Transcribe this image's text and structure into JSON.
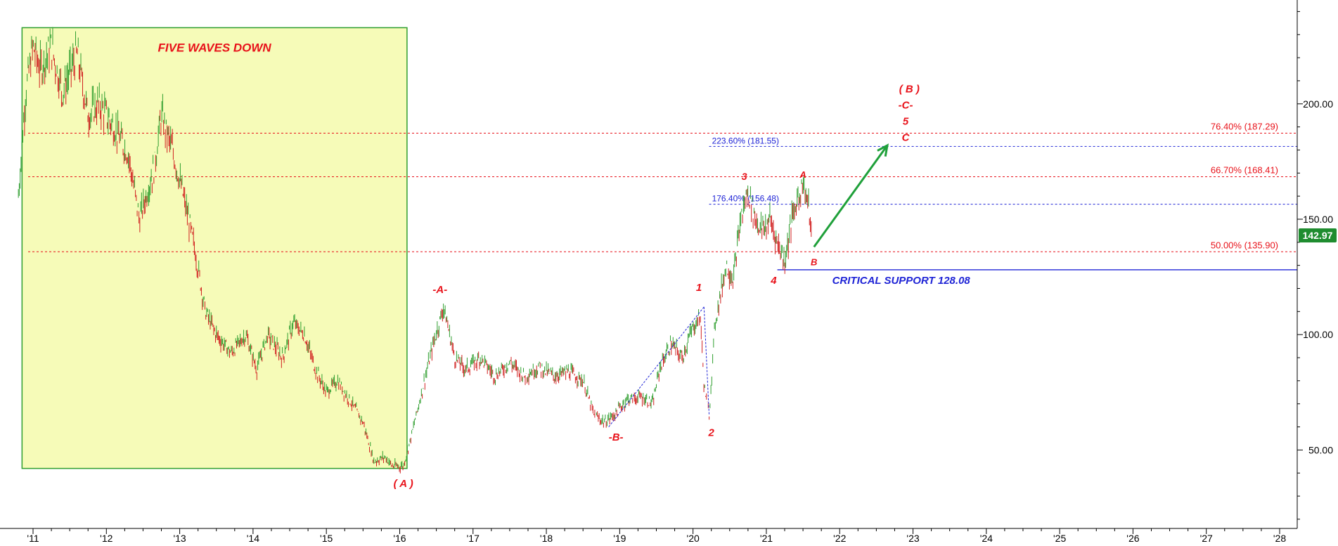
{
  "chart_data": {
    "type": "line",
    "style": "ohlc-bars",
    "x_axis": {
      "tick_labels": [
        "'11",
        "'12",
        "'13",
        "'14",
        "'15",
        "'16",
        "'17",
        "'18",
        "'19",
        "'20",
        "'21",
        "'22",
        "'23",
        "'24",
        "'25",
        "'26",
        "'27",
        "'28"
      ],
      "range": [
        2010.9,
        2028.1
      ]
    },
    "y_axis": {
      "tick_labels": [
        "50.00",
        "100.00",
        "150.00",
        "200.00"
      ],
      "tick_values": [
        50,
        100,
        150,
        200
      ],
      "range": [
        16,
        245
      ],
      "position": "right"
    },
    "last_price": {
      "label": "142.97",
      "value": 142.97,
      "color": "#1f8c2f"
    },
    "series": [
      {
        "values": [
          [
            2010.8,
            160
          ],
          [
            2010.9,
            205
          ],
          [
            2011.0,
            225
          ],
          [
            2011.1,
            215
          ],
          [
            2011.25,
            225
          ],
          [
            2011.4,
            205
          ],
          [
            2011.6,
            222
          ],
          [
            2011.75,
            195
          ],
          [
            2011.9,
            200
          ],
          [
            2012.1,
            190
          ],
          [
            2012.3,
            178
          ],
          [
            2012.45,
            150
          ],
          [
            2012.65,
            172
          ],
          [
            2012.75,
            195
          ],
          [
            2012.9,
            180
          ],
          [
            2013.05,
            160
          ],
          [
            2013.2,
            138
          ],
          [
            2013.35,
            110
          ],
          [
            2013.5,
            100
          ],
          [
            2013.7,
            92
          ],
          [
            2013.9,
            100
          ],
          [
            2014.05,
            85
          ],
          [
            2014.2,
            100
          ],
          [
            2014.4,
            90
          ],
          [
            2014.55,
            105
          ],
          [
            2014.7,
            100
          ],
          [
            2014.85,
            85
          ],
          [
            2015.0,
            75
          ],
          [
            2015.15,
            80
          ],
          [
            2015.35,
            70
          ],
          [
            2015.5,
            62
          ],
          [
            2015.65,
            45
          ],
          [
            2015.8,
            47
          ],
          [
            2015.9,
            43
          ],
          [
            2016.05,
            43
          ],
          [
            2016.15,
            55
          ],
          [
            2016.3,
            75
          ],
          [
            2016.45,
            95
          ],
          [
            2016.6,
            112
          ],
          [
            2016.75,
            90
          ],
          [
            2016.9,
            85
          ],
          [
            2017.1,
            90
          ],
          [
            2017.3,
            82
          ],
          [
            2017.5,
            88
          ],
          [
            2017.7,
            82
          ],
          [
            2017.9,
            86
          ],
          [
            2018.1,
            82
          ],
          [
            2018.3,
            84
          ],
          [
            2018.5,
            80
          ],
          [
            2018.65,
            65
          ],
          [
            2018.8,
            62
          ],
          [
            2018.95,
            66
          ],
          [
            2019.1,
            72
          ],
          [
            2019.3,
            73
          ],
          [
            2019.45,
            70
          ],
          [
            2019.55,
            86
          ],
          [
            2019.7,
            96
          ],
          [
            2019.85,
            90
          ],
          [
            2020.0,
            103
          ],
          [
            2020.1,
            108
          ],
          [
            2020.15,
            78
          ],
          [
            2020.22,
            65
          ],
          [
            2020.3,
            105
          ],
          [
            2020.45,
            130
          ],
          [
            2020.55,
            124
          ],
          [
            2020.65,
            150
          ],
          [
            2020.75,
            162
          ],
          [
            2020.85,
            150
          ],
          [
            2020.95,
            145
          ],
          [
            2021.05,
            150
          ],
          [
            2021.15,
            140
          ],
          [
            2021.25,
            132
          ],
          [
            2021.35,
            150
          ],
          [
            2021.42,
            158
          ],
          [
            2021.5,
            166
          ],
          [
            2021.58,
            155
          ],
          [
            2021.62,
            140
          ]
        ]
      }
    ],
    "horizontal_levels": [
      {
        "label": "76.40% (187.29)",
        "value": 187.29,
        "color": "#e8121a",
        "style": "dotted"
      },
      {
        "label": "66.70% (168.41)",
        "value": 168.41,
        "color": "#e8121a",
        "style": "dotted"
      },
      {
        "label": "50.00% (135.90)",
        "value": 135.9,
        "color": "#e8121a",
        "style": "dotted"
      },
      {
        "label": "223.60% (181.55)",
        "value": 181.55,
        "color": "#1f24d6",
        "style": "dotted",
        "x_start": 2020.22
      },
      {
        "label": "176.40% (156.48)",
        "value": 156.48,
        "color": "#1f24d6",
        "style": "dotted",
        "x_start": 2020.22
      },
      {
        "label": "CRITICAL SUPPORT 128.08",
        "value": 128.08,
        "color": "#1f24d6",
        "style": "solid",
        "x_start": 2021.15
      }
    ],
    "shaded_region": {
      "label": "FIVE WAVES DOWN",
      "x_range": [
        2010.85,
        2016.1
      ],
      "y_range": [
        42,
        233
      ],
      "fill": "#f6fbb8",
      "border": "#2e9e2e"
    },
    "wave_labels": [
      {
        "text": "( A )",
        "x": 2016.05,
        "y": 34,
        "size": 15
      },
      {
        "text": "-A-",
        "x": 2016.55,
        "y": 118,
        "size": 15
      },
      {
        "text": "-B-",
        "x": 2018.95,
        "y": 54,
        "size": 15
      },
      {
        "text": "1",
        "x": 2020.08,
        "y": 119,
        "size": 15
      },
      {
        "text": "2",
        "x": 2020.25,
        "y": 56,
        "size": 15
      },
      {
        "text": "3",
        "x": 2020.7,
        "y": 167,
        "size": 14
      },
      {
        "text": "4",
        "x": 2021.1,
        "y": 122,
        "size": 15
      },
      {
        "text": "A",
        "x": 2021.5,
        "y": 168,
        "size": 13
      },
      {
        "text": "B",
        "x": 2021.65,
        "y": 130,
        "size": 13
      },
      {
        "text": "( B )",
        "x": 2022.95,
        "y": 205,
        "size": 15
      },
      {
        "text": "-C-",
        "x": 2022.9,
        "y": 198,
        "size": 15
      },
      {
        "text": "5",
        "x": 2022.9,
        "y": 191,
        "size": 15
      },
      {
        "text": "C",
        "x": 2022.9,
        "y": 184,
        "size": 15
      }
    ],
    "channel_lines": [
      {
        "from": [
          2018.85,
          60
        ],
        "to": [
          2020.15,
          112
        ],
        "color": "#1f24d6"
      },
      {
        "from": [
          2020.15,
          112
        ],
        "to": [
          2020.22,
          65
        ],
        "color": "#1f24d6"
      }
    ],
    "projection_arrow": {
      "from": [
        2021.65,
        138
      ],
      "to": [
        2022.65,
        182
      ],
      "color": "#1fa03a"
    }
  }
}
